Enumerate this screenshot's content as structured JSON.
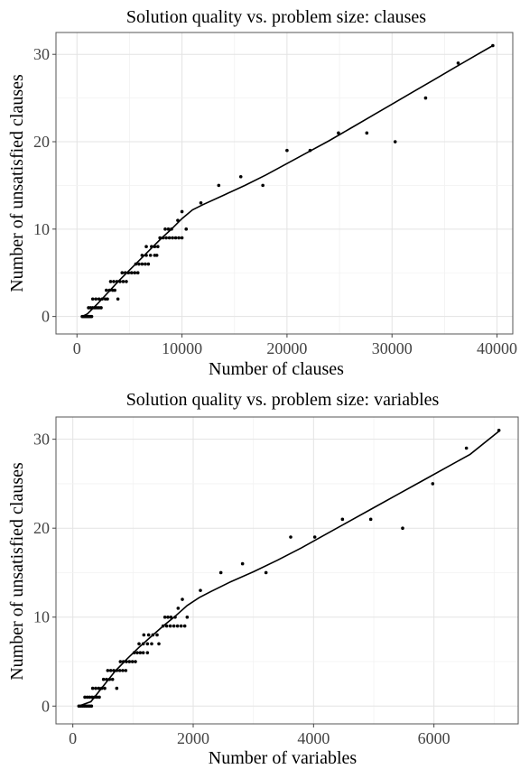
{
  "chart_data": [
    {
      "type": "scatter",
      "title": "Solution quality vs. problem size: clauses",
      "xlabel": "Number of clauses",
      "ylabel": "Number of unsatisfied clauses",
      "xlim": [
        -2000,
        41500
      ],
      "ylim": [
        -2,
        32.5
      ],
      "x_ticks": [
        0,
        10000,
        20000,
        30000,
        40000
      ],
      "y_ticks": [
        0,
        10,
        20,
        30
      ],
      "grid": true,
      "points": [
        [
          500,
          0
        ],
        [
          600,
          0
        ],
        [
          700,
          0
        ],
        [
          800,
          0
        ],
        [
          900,
          0
        ],
        [
          1000,
          0
        ],
        [
          1100,
          0
        ],
        [
          1200,
          0
        ],
        [
          1300,
          0
        ],
        [
          1400,
          0
        ],
        [
          1100,
          1
        ],
        [
          1300,
          1
        ],
        [
          1500,
          1
        ],
        [
          1700,
          1
        ],
        [
          1900,
          1
        ],
        [
          2100,
          1
        ],
        [
          2300,
          1
        ],
        [
          1500,
          2
        ],
        [
          1800,
          2
        ],
        [
          2100,
          2
        ],
        [
          2400,
          2
        ],
        [
          2700,
          2
        ],
        [
          2900,
          2
        ],
        [
          2800,
          3
        ],
        [
          3100,
          3
        ],
        [
          3400,
          3
        ],
        [
          3600,
          3
        ],
        [
          3200,
          4
        ],
        [
          3500,
          4
        ],
        [
          3800,
          4
        ],
        [
          4100,
          4
        ],
        [
          4400,
          4
        ],
        [
          4700,
          4
        ],
        [
          3900,
          2
        ],
        [
          4300,
          5
        ],
        [
          4600,
          5
        ],
        [
          4900,
          5
        ],
        [
          5200,
          5
        ],
        [
          5500,
          5
        ],
        [
          5800,
          5
        ],
        [
          5600,
          6
        ],
        [
          5900,
          6
        ],
        [
          6200,
          6
        ],
        [
          6500,
          6
        ],
        [
          6800,
          6
        ],
        [
          6200,
          7
        ],
        [
          6600,
          7
        ],
        [
          7000,
          7
        ],
        [
          7400,
          7
        ],
        [
          7600,
          7
        ],
        [
          6600,
          8
        ],
        [
          7100,
          8
        ],
        [
          7400,
          8
        ],
        [
          7700,
          8
        ],
        [
          7900,
          9
        ],
        [
          8200,
          9
        ],
        [
          8500,
          9
        ],
        [
          8800,
          9
        ],
        [
          9100,
          9
        ],
        [
          9400,
          9
        ],
        [
          9700,
          9
        ],
        [
          10000,
          9
        ],
        [
          8400,
          10
        ],
        [
          8700,
          10
        ],
        [
          9000,
          10
        ],
        [
          10400,
          10
        ],
        [
          9600,
          11
        ],
        [
          10000,
          12
        ],
        [
          11800,
          13
        ],
        [
          13500,
          15
        ],
        [
          15600,
          16
        ],
        [
          17700,
          15
        ],
        [
          20000,
          19
        ],
        [
          22200,
          19
        ],
        [
          24900,
          21
        ],
        [
          27600,
          21
        ],
        [
          30300,
          20
        ],
        [
          33200,
          25
        ],
        [
          36300,
          29
        ],
        [
          39600,
          31
        ]
      ],
      "smooth": [
        [
          500,
          0
        ],
        [
          1000,
          0.3
        ],
        [
          2000,
          1.5
        ],
        [
          3000,
          2.8
        ],
        [
          4000,
          4.1
        ],
        [
          5000,
          5.3
        ],
        [
          6000,
          6.5
        ],
        [
          7000,
          7.7
        ],
        [
          8000,
          8.9
        ],
        [
          9000,
          10.0
        ],
        [
          10000,
          11.2
        ],
        [
          11000,
          12.2
        ],
        [
          12000,
          12.8
        ],
        [
          14000,
          13.9
        ],
        [
          16000,
          15.0
        ],
        [
          18000,
          16.2
        ],
        [
          20000,
          17.5
        ],
        [
          22000,
          18.8
        ],
        [
          24000,
          20.1
        ],
        [
          26000,
          21.5
        ],
        [
          28000,
          22.9
        ],
        [
          30000,
          24.3
        ],
        [
          32000,
          25.7
        ],
        [
          34000,
          27.1
        ],
        [
          36000,
          28.5
        ],
        [
          38000,
          29.9
        ],
        [
          39600,
          31.0
        ]
      ]
    },
    {
      "type": "scatter",
      "title": "Solution quality vs. problem size: variables",
      "xlabel": "Number of variables",
      "ylabel": "Number of unsatisfied clauses",
      "xlim": [
        -280,
        7400
      ],
      "ylim": [
        -2,
        32.5
      ],
      "x_ticks": [
        0,
        2000,
        4000,
        6000
      ],
      "y_ticks": [
        0,
        10,
        20,
        30
      ],
      "grid": true,
      "points": [
        [
          100,
          0
        ],
        [
          130,
          0
        ],
        [
          160,
          0
        ],
        [
          190,
          0
        ],
        [
          220,
          0
        ],
        [
          250,
          0
        ],
        [
          280,
          0
        ],
        [
          310,
          0
        ],
        [
          200,
          1
        ],
        [
          240,
          1
        ],
        [
          280,
          1
        ],
        [
          320,
          1
        ],
        [
          360,
          1
        ],
        [
          400,
          1
        ],
        [
          440,
          1
        ],
        [
          330,
          2
        ],
        [
          380,
          2
        ],
        [
          430,
          2
        ],
        [
          480,
          2
        ],
        [
          530,
          2
        ],
        [
          510,
          3
        ],
        [
          560,
          3
        ],
        [
          610,
          3
        ],
        [
          660,
          3
        ],
        [
          580,
          4
        ],
        [
          630,
          4
        ],
        [
          680,
          4
        ],
        [
          730,
          4
        ],
        [
          780,
          4
        ],
        [
          830,
          4
        ],
        [
          880,
          4
        ],
        [
          730,
          2
        ],
        [
          790,
          5
        ],
        [
          840,
          5
        ],
        [
          890,
          5
        ],
        [
          940,
          5
        ],
        [
          990,
          5
        ],
        [
          1040,
          5
        ],
        [
          1020,
          6
        ],
        [
          1070,
          6
        ],
        [
          1120,
          6
        ],
        [
          1170,
          6
        ],
        [
          1100,
          7
        ],
        [
          1170,
          7
        ],
        [
          1240,
          7
        ],
        [
          1310,
          7
        ],
        [
          1430,
          7
        ],
        [
          1180,
          8
        ],
        [
          1260,
          8
        ],
        [
          1330,
          8
        ],
        [
          1400,
          8
        ],
        [
          1240,
          6
        ],
        [
          1500,
          9
        ],
        [
          1560,
          9
        ],
        [
          1620,
          9
        ],
        [
          1680,
          9
        ],
        [
          1740,
          9
        ],
        [
          1800,
          9
        ],
        [
          1860,
          9
        ],
        [
          1530,
          10
        ],
        [
          1580,
          10
        ],
        [
          1630,
          10
        ],
        [
          1700,
          10
        ],
        [
          1900,
          10
        ],
        [
          1750,
          11
        ],
        [
          1820,
          12
        ],
        [
          2120,
          13
        ],
        [
          2460,
          15
        ],
        [
          2820,
          16
        ],
        [
          3210,
          15
        ],
        [
          3620,
          19
        ],
        [
          4020,
          19
        ],
        [
          4480,
          21
        ],
        [
          4950,
          21
        ],
        [
          5480,
          20
        ],
        [
          5980,
          25
        ],
        [
          6540,
          29
        ],
        [
          7080,
          31
        ]
      ],
      "smooth": [
        [
          100,
          0
        ],
        [
          300,
          0.5
        ],
        [
          500,
          2.2
        ],
        [
          700,
          3.9
        ],
        [
          900,
          5.3
        ],
        [
          1100,
          6.6
        ],
        [
          1300,
          7.8
        ],
        [
          1500,
          9.0
        ],
        [
          1700,
          10.1
        ],
        [
          1900,
          11.3
        ],
        [
          2100,
          12.2
        ],
        [
          2300,
          12.9
        ],
        [
          2600,
          13.9
        ],
        [
          3000,
          15.1
        ],
        [
          3400,
          16.4
        ],
        [
          3800,
          17.8
        ],
        [
          4200,
          19.3
        ],
        [
          4600,
          20.8
        ],
        [
          5000,
          22.3
        ],
        [
          5400,
          23.8
        ],
        [
          5800,
          25.3
        ],
        [
          6200,
          26.8
        ],
        [
          6600,
          28.3
        ],
        [
          7080,
          30.9
        ]
      ]
    }
  ]
}
